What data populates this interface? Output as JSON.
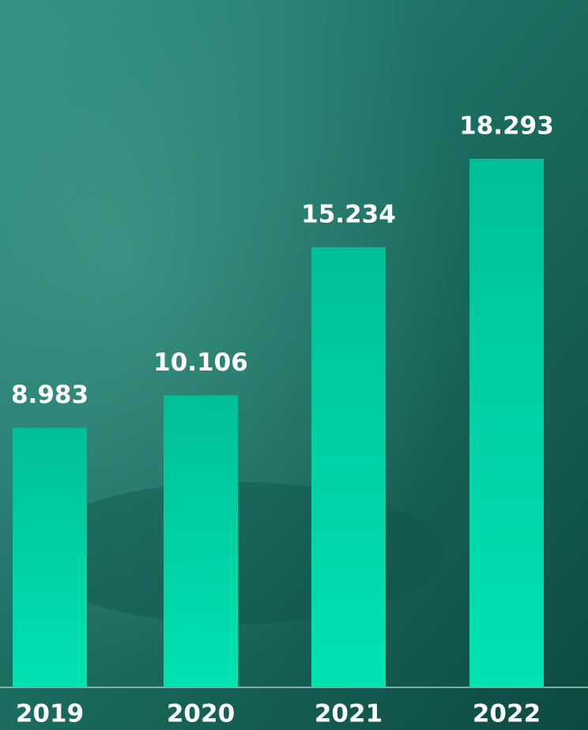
{
  "chart_data": {
    "type": "bar",
    "categories": [
      "2019",
      "2020",
      "2021",
      "2022"
    ],
    "values": [
      8983,
      10106,
      15234,
      18293
    ],
    "value_labels": [
      "8.983",
      "10.106",
      "15.234",
      "18.293"
    ],
    "color": "#00d4a6"
  }
}
